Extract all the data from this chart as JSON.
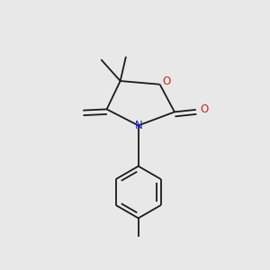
{
  "bg_color": "#e8e8e8",
  "bond_color": "#1a1a1a",
  "N_color": "#2222cc",
  "O_color": "#cc2222",
  "lw": 1.3,
  "figsize": [
    3.0,
    3.0
  ],
  "dpi": 100,
  "xlim": [
    0.1,
    0.9
  ],
  "ylim": [
    0.05,
    0.97
  ]
}
